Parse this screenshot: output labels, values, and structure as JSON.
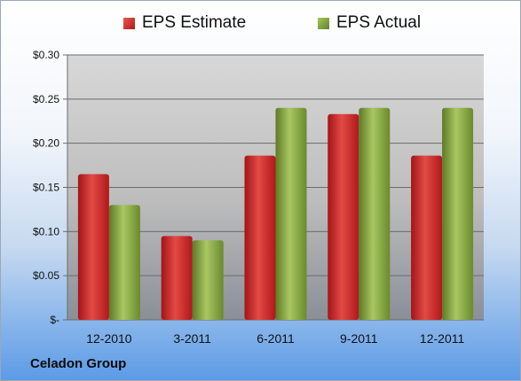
{
  "company": "Celadon Group",
  "chart_data": {
    "type": "bar",
    "categories": [
      "12-2010",
      "3-2011",
      "6-2011",
      "9-2011",
      "12-2011"
    ],
    "series": [
      {
        "name": "EPS Estimate",
        "color": "#c8211f",
        "values": [
          0.165,
          0.095,
          0.186,
          0.233,
          0.186
        ]
      },
      {
        "name": "EPS Actual",
        "color": "#7a9a33",
        "values": [
          0.13,
          0.09,
          0.24,
          0.24,
          0.24
        ]
      }
    ],
    "yticks": [
      "$-",
      "$0.05",
      "$0.10",
      "$0.15",
      "$0.20",
      "$0.25",
      "$0.30"
    ],
    "ylim": [
      0,
      0.3
    ],
    "grid": true,
    "legend": "top"
  }
}
